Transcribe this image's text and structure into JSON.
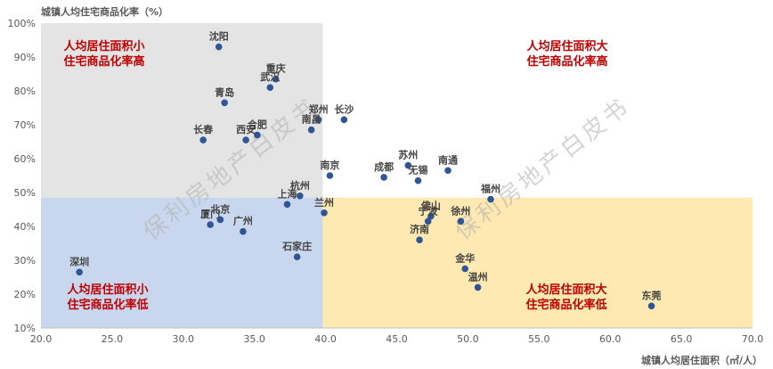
{
  "chart_data": {
    "type": "scatter",
    "ylabel": "城镇人均住宅商品化率（%）",
    "xlabel": "城镇人均居住面积（㎡/人）",
    "xlim": [
      20,
      70
    ],
    "ylim": [
      10,
      100
    ],
    "x_ticks": [
      "20.0",
      "25.0",
      "30.0",
      "35.0",
      "40.0",
      "45.0",
      "50.0",
      "55.0",
      "60.0",
      "65.0",
      "70.0"
    ],
    "y_ticks": [
      "10%",
      "20%",
      "30%",
      "40%",
      "50%",
      "60%",
      "70%",
      "80%",
      "90%",
      "100%"
    ],
    "x_split": 39.8,
    "y_split": 48.5,
    "marker_color": "#2f5597",
    "quadrant_colors": {
      "top_left": "#e4e4e4",
      "bottom_left": "#c9d7ee",
      "bottom_right": "#fde9b1"
    },
    "quadrant_labels": {
      "top_left": [
        "人均居住面积小",
        "住宅商品化率高"
      ],
      "top_right": [
        "人均居住面积大",
        "住宅商品化率高"
      ],
      "bottom_left": [
        "人均居住面积小",
        "住宅商品化率低"
      ],
      "bottom_right": [
        "人均居住面积大",
        "住宅商品化率低"
      ]
    },
    "watermark": [
      "保利房地产白皮书",
      "保利房地产白皮书"
    ],
    "points": [
      {
        "name": "沈阳",
        "x": 32.5,
        "y": 93.0
      },
      {
        "name": "重庆",
        "x": 36.5,
        "y": 83.5
      },
      {
        "name": "武汉",
        "x": 36.1,
        "y": 81.0
      },
      {
        "name": "青岛",
        "x": 32.9,
        "y": 76.5
      },
      {
        "name": "郑州",
        "x": 39.5,
        "y": 71.5
      },
      {
        "name": "长沙",
        "x": 41.3,
        "y": 71.5
      },
      {
        "name": "南昌",
        "x": 39.0,
        "y": 68.5
      },
      {
        "name": "合肥",
        "x": 35.2,
        "y": 67.0
      },
      {
        "name": "西安",
        "x": 34.4,
        "y": 65.5
      },
      {
        "name": "长春",
        "x": 31.4,
        "y": 65.5
      },
      {
        "name": "苏州",
        "x": 45.8,
        "y": 58.0
      },
      {
        "name": "南通",
        "x": 48.6,
        "y": 56.5
      },
      {
        "name": "南京",
        "x": 40.3,
        "y": 55.0
      },
      {
        "name": "成都",
        "x": 44.1,
        "y": 54.5
      },
      {
        "name": "无锡",
        "x": 46.5,
        "y": 53.5
      },
      {
        "name": "福州",
        "x": 51.6,
        "y": 48.0
      },
      {
        "name": "杭州",
        "x": 38.2,
        "y": 49.0
      },
      {
        "name": "上海",
        "x": 37.3,
        "y": 46.5
      },
      {
        "name": "兰州",
        "x": 39.9,
        "y": 44.0
      },
      {
        "name": "北京",
        "x": 32.6,
        "y": 42.0
      },
      {
        "name": "厦门",
        "x": 31.9,
        "y": 40.5
      },
      {
        "name": "广州",
        "x": 34.2,
        "y": 38.5
      },
      {
        "name": "佛山",
        "x": 47.4,
        "y": 43.0
      },
      {
        "name": "宁波",
        "x": 47.2,
        "y": 41.5
      },
      {
        "name": "徐州",
        "x": 49.5,
        "y": 41.5
      },
      {
        "name": "济南",
        "x": 46.6,
        "y": 36.0
      },
      {
        "name": "石家庄",
        "x": 38.0,
        "y": 31.0
      },
      {
        "name": "金华",
        "x": 49.8,
        "y": 27.5
      },
      {
        "name": "深圳",
        "x": 22.7,
        "y": 26.5
      },
      {
        "name": "温州",
        "x": 50.7,
        "y": 22.0
      },
      {
        "name": "东莞",
        "x": 62.9,
        "y": 16.5
      }
    ]
  }
}
